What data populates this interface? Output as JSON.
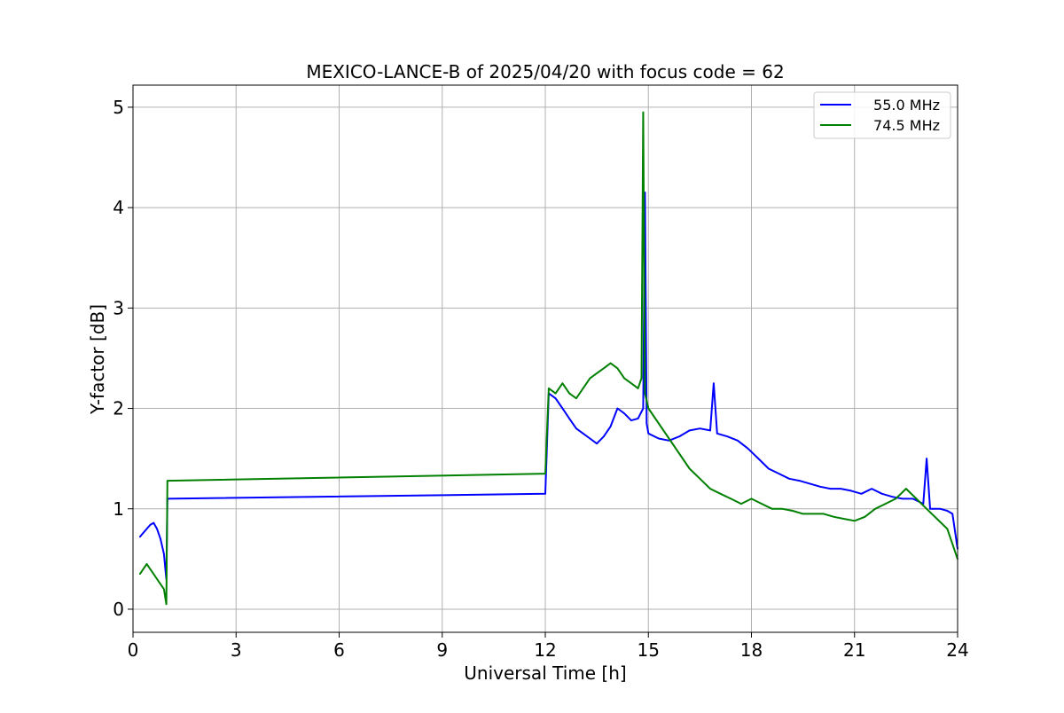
{
  "chart_data": {
    "type": "line",
    "title": "MEXICO-LANCE-B of 2025/04/20 with focus code = 62",
    "xlabel": "Universal Time [h]",
    "ylabel": "Y-factor [dB]",
    "xlim": [
      0,
      24
    ],
    "ylim": [
      -0.23,
      5.22
    ],
    "xticks": [
      0,
      3,
      6,
      9,
      12,
      15,
      18,
      21,
      24
    ],
    "yticks": [
      0,
      1,
      2,
      3,
      4,
      5
    ],
    "grid": true,
    "legend_position": "top-right",
    "series": [
      {
        "name": "55.0 MHz",
        "color": "#0000ff",
        "x": [
          0.2,
          0.3,
          0.4,
          0.5,
          0.6,
          0.7,
          0.8,
          0.9,
          0.97,
          1.0,
          12.0,
          12.1,
          12.3,
          12.5,
          12.7,
          12.9,
          13.1,
          13.3,
          13.5,
          13.7,
          13.9,
          14.1,
          14.3,
          14.5,
          14.7,
          14.85,
          14.9,
          14.95,
          15.0,
          15.3,
          15.6,
          15.9,
          16.2,
          16.5,
          16.8,
          16.9,
          17.0,
          17.3,
          17.6,
          17.9,
          18.2,
          18.5,
          18.8,
          19.1,
          19.4,
          19.7,
          20.0,
          20.3,
          20.6,
          20.9,
          21.2,
          21.5,
          21.8,
          22.1,
          22.4,
          22.7,
          23.0,
          23.1,
          23.2,
          23.5,
          23.7,
          23.85,
          24.0
        ],
        "y": [
          0.72,
          0.76,
          0.8,
          0.84,
          0.86,
          0.8,
          0.7,
          0.55,
          0.3,
          1.1,
          1.15,
          2.15,
          2.1,
          2.0,
          1.9,
          1.8,
          1.75,
          1.7,
          1.65,
          1.72,
          1.82,
          2.0,
          1.95,
          1.88,
          1.9,
          2.0,
          4.15,
          1.85,
          1.75,
          1.7,
          1.68,
          1.72,
          1.78,
          1.8,
          1.78,
          2.25,
          1.75,
          1.72,
          1.68,
          1.6,
          1.5,
          1.4,
          1.35,
          1.3,
          1.28,
          1.25,
          1.22,
          1.2,
          1.2,
          1.18,
          1.15,
          1.2,
          1.15,
          1.12,
          1.1,
          1.1,
          1.05,
          1.5,
          1.0,
          1.0,
          0.98,
          0.95,
          0.6
        ]
      },
      {
        "name": "74.5 MHz",
        "color": "#008000",
        "x": [
          0.2,
          0.3,
          0.4,
          0.5,
          0.6,
          0.7,
          0.8,
          0.9,
          0.97,
          1.0,
          12.0,
          12.1,
          12.3,
          12.5,
          12.7,
          12.9,
          13.1,
          13.3,
          13.5,
          13.7,
          13.9,
          14.1,
          14.3,
          14.5,
          14.7,
          14.8,
          14.85,
          14.9,
          15.0,
          15.3,
          15.6,
          15.9,
          16.2,
          16.5,
          16.8,
          17.1,
          17.4,
          17.7,
          18.0,
          18.3,
          18.6,
          18.9,
          19.2,
          19.5,
          19.8,
          20.1,
          20.4,
          20.7,
          21.0,
          21.3,
          21.6,
          21.9,
          22.2,
          22.5,
          22.8,
          23.1,
          23.4,
          23.7,
          24.0
        ],
        "y": [
          0.35,
          0.4,
          0.45,
          0.4,
          0.35,
          0.3,
          0.25,
          0.2,
          0.05,
          1.28,
          1.35,
          2.2,
          2.15,
          2.25,
          2.15,
          2.1,
          2.2,
          2.3,
          2.35,
          2.4,
          2.45,
          2.4,
          2.3,
          2.25,
          2.2,
          2.3,
          4.95,
          2.15,
          2.0,
          1.85,
          1.7,
          1.55,
          1.4,
          1.3,
          1.2,
          1.15,
          1.1,
          1.05,
          1.1,
          1.05,
          1.0,
          1.0,
          0.98,
          0.95,
          0.95,
          0.95,
          0.92,
          0.9,
          0.88,
          0.92,
          1.0,
          1.05,
          1.1,
          1.2,
          1.1,
          1.0,
          0.9,
          0.8,
          0.5
        ]
      }
    ]
  }
}
